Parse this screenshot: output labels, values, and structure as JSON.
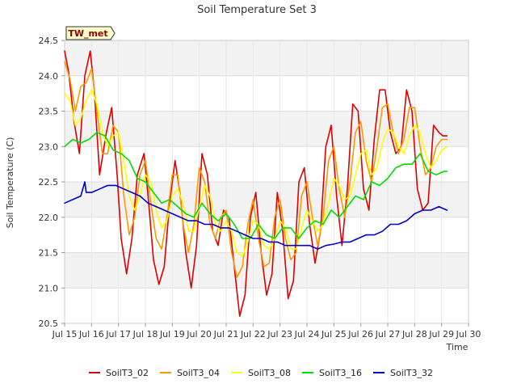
{
  "chart_data": {
    "type": "line",
    "title": "Soil Temperature Set 3",
    "xlabel": "Time",
    "ylabel": "Soil Temperature (C)",
    "station_badge": "TW_met",
    "xlim": [
      15,
      30
    ],
    "ylim": [
      20.5,
      24.5
    ],
    "x_ticks": [
      15,
      16,
      17,
      18,
      19,
      20,
      21,
      22,
      23,
      24,
      25,
      26,
      27,
      28,
      29,
      30
    ],
    "x_tick_labels": [
      "Jul 15",
      "Jul 16",
      "Jul 17",
      "Jul 18",
      "Jul 19",
      "Jul 20",
      "Jul 21",
      "Jul 22",
      "Jul 23",
      "Jul 24",
      "Jul 25",
      "Jul 26",
      "Jul 27",
      "Jul 28",
      "Jul 29",
      "Jul 30"
    ],
    "y_ticks": [
      20.5,
      21.0,
      21.5,
      22.0,
      22.5,
      23.0,
      23.5,
      24.0,
      24.5
    ],
    "y_tick_labels": [
      "20.5",
      "21.0",
      "21.5",
      "22.0",
      "22.5",
      "23.0",
      "23.5",
      "24.0",
      "24.5"
    ],
    "grid": true,
    "legend_position": "bottom",
    "series": [
      {
        "name": "SoilT3_02",
        "color": "#dd0000",
        "x": [
          15.0,
          15.15,
          15.35,
          15.55,
          15.75,
          15.95,
          16.1,
          16.3,
          16.55,
          16.75,
          16.95,
          17.1,
          17.3,
          17.5,
          17.7,
          17.95,
          18.1,
          18.3,
          18.5,
          18.7,
          18.9,
          19.1,
          19.3,
          19.5,
          19.7,
          19.9,
          20.1,
          20.3,
          20.5,
          20.7,
          20.9,
          21.1,
          21.3,
          21.5,
          21.7,
          21.9,
          22.1,
          22.3,
          22.5,
          22.7,
          22.9,
          23.1,
          23.3,
          23.5,
          23.7,
          23.9,
          24.1,
          24.3,
          24.5,
          24.7,
          24.9,
          25.1,
          25.3,
          25.5,
          25.7,
          25.9,
          26.1,
          26.3,
          26.5,
          26.7,
          26.9,
          27.1,
          27.3,
          27.5,
          27.7,
          27.9,
          28.1,
          28.3,
          28.5,
          28.7,
          28.9,
          29.05,
          29.2
        ],
        "y": [
          24.35,
          24.05,
          23.35,
          22.9,
          24.0,
          24.35,
          23.8,
          22.6,
          23.2,
          23.55,
          22.6,
          21.7,
          21.2,
          21.7,
          22.6,
          22.9,
          22.3,
          21.4,
          21.05,
          21.3,
          22.2,
          22.8,
          22.3,
          21.5,
          21.0,
          21.6,
          22.9,
          22.6,
          21.8,
          21.6,
          22.1,
          22.0,
          21.3,
          20.6,
          20.9,
          22.0,
          22.35,
          21.5,
          20.9,
          21.2,
          22.35,
          21.8,
          20.85,
          21.1,
          22.5,
          22.7,
          21.9,
          21.35,
          21.8,
          23.0,
          23.3,
          22.3,
          21.6,
          22.4,
          23.6,
          23.5,
          22.4,
          22.1,
          23.1,
          23.8,
          23.8,
          23.2,
          22.9,
          23.0,
          23.8,
          23.5,
          22.4,
          22.1,
          22.2,
          23.3,
          23.2,
          23.15,
          23.15
        ]
      },
      {
        "name": "SoilT3_04",
        "color": "#ff9900",
        "x": [
          15.0,
          15.2,
          15.4,
          15.6,
          15.8,
          16.0,
          16.2,
          16.4,
          16.6,
          16.8,
          17.0,
          17.2,
          17.4,
          17.6,
          17.8,
          18.0,
          18.2,
          18.4,
          18.6,
          18.8,
          19.0,
          19.2,
          19.4,
          19.6,
          19.8,
          20.0,
          20.2,
          20.4,
          20.6,
          20.8,
          21.0,
          21.2,
          21.4,
          21.6,
          21.8,
          22.0,
          22.2,
          22.4,
          22.6,
          22.8,
          23.0,
          23.2,
          23.4,
          23.6,
          23.8,
          24.0,
          24.2,
          24.4,
          24.6,
          24.8,
          25.0,
          25.2,
          25.4,
          25.6,
          25.8,
          26.0,
          26.2,
          26.4,
          26.6,
          26.8,
          27.0,
          27.2,
          27.4,
          27.6,
          27.8,
          28.0,
          28.2,
          28.4,
          28.6,
          28.8,
          29.0,
          29.2
        ],
        "y": [
          24.2,
          23.95,
          23.5,
          23.85,
          23.9,
          24.1,
          23.5,
          22.9,
          22.9,
          23.3,
          23.2,
          22.3,
          21.75,
          22.0,
          22.6,
          22.8,
          22.2,
          21.7,
          21.55,
          22.0,
          22.6,
          22.6,
          21.9,
          21.5,
          21.9,
          22.7,
          22.5,
          21.9,
          21.7,
          22.0,
          22.1,
          21.5,
          21.15,
          21.3,
          21.9,
          22.25,
          21.7,
          21.3,
          21.35,
          22.0,
          22.25,
          21.7,
          21.4,
          21.5,
          22.3,
          22.5,
          22.0,
          21.6,
          22.0,
          22.8,
          23.0,
          22.4,
          22.0,
          22.5,
          23.2,
          23.35,
          22.8,
          22.5,
          23.0,
          23.55,
          23.6,
          23.2,
          22.9,
          23.1,
          23.55,
          23.55,
          23.0,
          22.6,
          22.7,
          23.0,
          23.1,
          23.1
        ]
      },
      {
        "name": "SoilT3_08",
        "color": "#ffff00",
        "x": [
          15.0,
          15.2,
          15.4,
          15.6,
          15.8,
          16.0,
          16.2,
          16.4,
          16.6,
          16.8,
          17.0,
          17.2,
          17.4,
          17.6,
          17.8,
          18.0,
          18.2,
          18.4,
          18.6,
          18.8,
          19.0,
          19.2,
          19.4,
          19.6,
          19.8,
          20.0,
          20.2,
          20.4,
          20.6,
          20.8,
          21.0,
          21.2,
          21.4,
          21.6,
          21.8,
          22.0,
          22.2,
          22.4,
          22.6,
          22.8,
          23.0,
          23.2,
          23.4,
          23.6,
          23.8,
          24.0,
          24.2,
          24.4,
          24.6,
          24.8,
          25.0,
          25.2,
          25.4,
          25.6,
          25.8,
          26.0,
          26.2,
          26.4,
          26.6,
          26.8,
          27.0,
          27.2,
          27.4,
          27.6,
          27.8,
          28.0,
          28.2,
          28.4,
          28.6,
          28.8,
          29.0,
          29.2
        ],
        "y": [
          23.75,
          23.65,
          23.3,
          23.4,
          23.65,
          23.8,
          23.6,
          23.2,
          23.0,
          23.15,
          23.2,
          22.8,
          22.3,
          22.1,
          22.3,
          22.6,
          22.5,
          22.1,
          21.85,
          21.95,
          22.3,
          22.4,
          22.2,
          21.8,
          21.8,
          22.15,
          22.45,
          22.3,
          21.9,
          21.8,
          21.95,
          21.8,
          21.5,
          21.45,
          21.65,
          21.95,
          21.9,
          21.6,
          21.55,
          21.7,
          21.95,
          21.85,
          21.55,
          21.55,
          21.85,
          22.1,
          21.95,
          21.8,
          21.9,
          22.2,
          22.55,
          22.45,
          22.25,
          22.3,
          22.6,
          22.9,
          22.95,
          22.6,
          22.7,
          23.05,
          23.25,
          23.2,
          23.0,
          22.9,
          23.15,
          23.3,
          23.2,
          22.9,
          22.7,
          22.8,
          22.95,
          23.0
        ]
      },
      {
        "name": "SoilT3_16",
        "color": "#00dd00",
        "x": [
          15.0,
          15.3,
          15.6,
          15.9,
          16.2,
          16.5,
          16.8,
          17.1,
          17.4,
          17.7,
          18.0,
          18.3,
          18.6,
          18.9,
          19.2,
          19.5,
          19.8,
          20.1,
          20.4,
          20.7,
          21.0,
          21.3,
          21.6,
          21.9,
          22.2,
          22.5,
          22.8,
          23.1,
          23.4,
          23.7,
          24.0,
          24.3,
          24.6,
          24.9,
          25.2,
          25.5,
          25.8,
          26.1,
          26.4,
          26.7,
          27.0,
          27.3,
          27.6,
          27.9,
          28.2,
          28.5,
          28.8,
          29.1,
          29.2
        ],
        "y": [
          23.0,
          23.1,
          23.05,
          23.1,
          23.2,
          23.15,
          22.95,
          22.9,
          22.8,
          22.55,
          22.5,
          22.35,
          22.2,
          22.25,
          22.15,
          22.05,
          22.0,
          22.2,
          22.05,
          21.95,
          22.05,
          21.9,
          21.7,
          21.7,
          21.9,
          21.75,
          21.7,
          21.85,
          21.85,
          21.7,
          21.85,
          21.95,
          21.9,
          22.1,
          22.0,
          22.15,
          22.3,
          22.25,
          22.5,
          22.45,
          22.55,
          22.7,
          22.75,
          22.75,
          22.9,
          22.65,
          22.6,
          22.65,
          22.65
        ]
      },
      {
        "name": "SoilT3_32",
        "color": "#0000cc",
        "x": [
          15.0,
          15.3,
          15.6,
          15.75,
          15.8,
          16.0,
          16.3,
          16.6,
          16.9,
          17.2,
          17.5,
          17.8,
          18.1,
          18.4,
          18.7,
          19.0,
          19.3,
          19.6,
          19.9,
          20.2,
          20.5,
          20.8,
          21.1,
          21.4,
          21.7,
          22.0,
          22.3,
          22.6,
          22.9,
          23.2,
          23.5,
          23.8,
          24.1,
          24.4,
          24.7,
          25.0,
          25.3,
          25.6,
          25.9,
          26.2,
          26.5,
          26.8,
          27.1,
          27.4,
          27.7,
          28.0,
          28.3,
          28.6,
          28.9,
          29.2
        ],
        "y": [
          22.2,
          22.25,
          22.3,
          22.5,
          22.35,
          22.35,
          22.4,
          22.45,
          22.45,
          22.4,
          22.35,
          22.3,
          22.2,
          22.15,
          22.1,
          22.05,
          22.0,
          21.95,
          21.95,
          21.9,
          21.9,
          21.85,
          21.85,
          21.8,
          21.75,
          21.7,
          21.7,
          21.65,
          21.65,
          21.6,
          21.6,
          21.6,
          21.6,
          21.55,
          21.6,
          21.62,
          21.65,
          21.65,
          21.7,
          21.75,
          21.75,
          21.8,
          21.9,
          21.9,
          21.95,
          22.05,
          22.1,
          22.1,
          22.15,
          22.1
        ]
      }
    ]
  }
}
